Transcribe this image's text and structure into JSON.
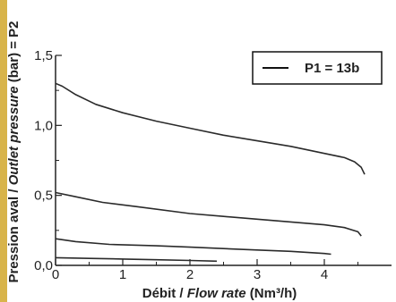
{
  "chart_data": {
    "type": "line",
    "xlabel_regular": "Débit / ",
    "xlabel_italic": "Flow rate",
    "xlabel_unit": " (Nm³/h)",
    "ylabel_regular_1": "Pression aval / ",
    "ylabel_italic": "Outlet pressure",
    "ylabel_regular_2": " (bar) = P2",
    "legend": [
      {
        "label": "P1 = 13b"
      }
    ],
    "xlim": [
      0,
      5
    ],
    "ylim": [
      0,
      1.5
    ],
    "x_ticks": [
      0,
      1,
      2,
      3,
      4
    ],
    "x_tick_labels": [
      "0",
      "1",
      "2",
      "3",
      "4"
    ],
    "y_ticks": [
      0,
      0.5,
      1.0,
      1.5
    ],
    "y_tick_labels": [
      "0,0",
      "0,5",
      "1,0",
      "1,5"
    ],
    "series": [
      {
        "points": [
          [
            0,
            1.3
          ],
          [
            0.1,
            1.28
          ],
          [
            0.3,
            1.22
          ],
          [
            0.6,
            1.15
          ],
          [
            1.0,
            1.09
          ],
          [
            1.5,
            1.03
          ],
          [
            2.0,
            0.98
          ],
          [
            2.5,
            0.93
          ],
          [
            3.0,
            0.89
          ],
          [
            3.5,
            0.85
          ],
          [
            4.0,
            0.8
          ],
          [
            4.3,
            0.77
          ],
          [
            4.45,
            0.74
          ],
          [
            4.55,
            0.7
          ],
          [
            4.6,
            0.65
          ]
        ]
      },
      {
        "points": [
          [
            0,
            0.52
          ],
          [
            0.3,
            0.49
          ],
          [
            0.7,
            0.45
          ],
          [
            1.2,
            0.42
          ],
          [
            2.0,
            0.37
          ],
          [
            2.5,
            0.35
          ],
          [
            3.0,
            0.33
          ],
          [
            3.5,
            0.31
          ],
          [
            4.0,
            0.29
          ],
          [
            4.3,
            0.27
          ],
          [
            4.5,
            0.24
          ],
          [
            4.55,
            0.21
          ]
        ]
      },
      {
        "points": [
          [
            0,
            0.19
          ],
          [
            0.3,
            0.17
          ],
          [
            0.8,
            0.15
          ],
          [
            1.5,
            0.14
          ],
          [
            2.0,
            0.13
          ],
          [
            3.0,
            0.11
          ],
          [
            3.5,
            0.1
          ],
          [
            4.0,
            0.085
          ],
          [
            4.1,
            0.08
          ]
        ]
      },
      {
        "points": [
          [
            0,
            0.055
          ],
          [
            0.5,
            0.05
          ],
          [
            1.0,
            0.045
          ],
          [
            1.5,
            0.04
          ],
          [
            2.0,
            0.035
          ],
          [
            2.4,
            0.03
          ]
        ]
      }
    ],
    "grid": false,
    "legend_position": "top-right"
  }
}
